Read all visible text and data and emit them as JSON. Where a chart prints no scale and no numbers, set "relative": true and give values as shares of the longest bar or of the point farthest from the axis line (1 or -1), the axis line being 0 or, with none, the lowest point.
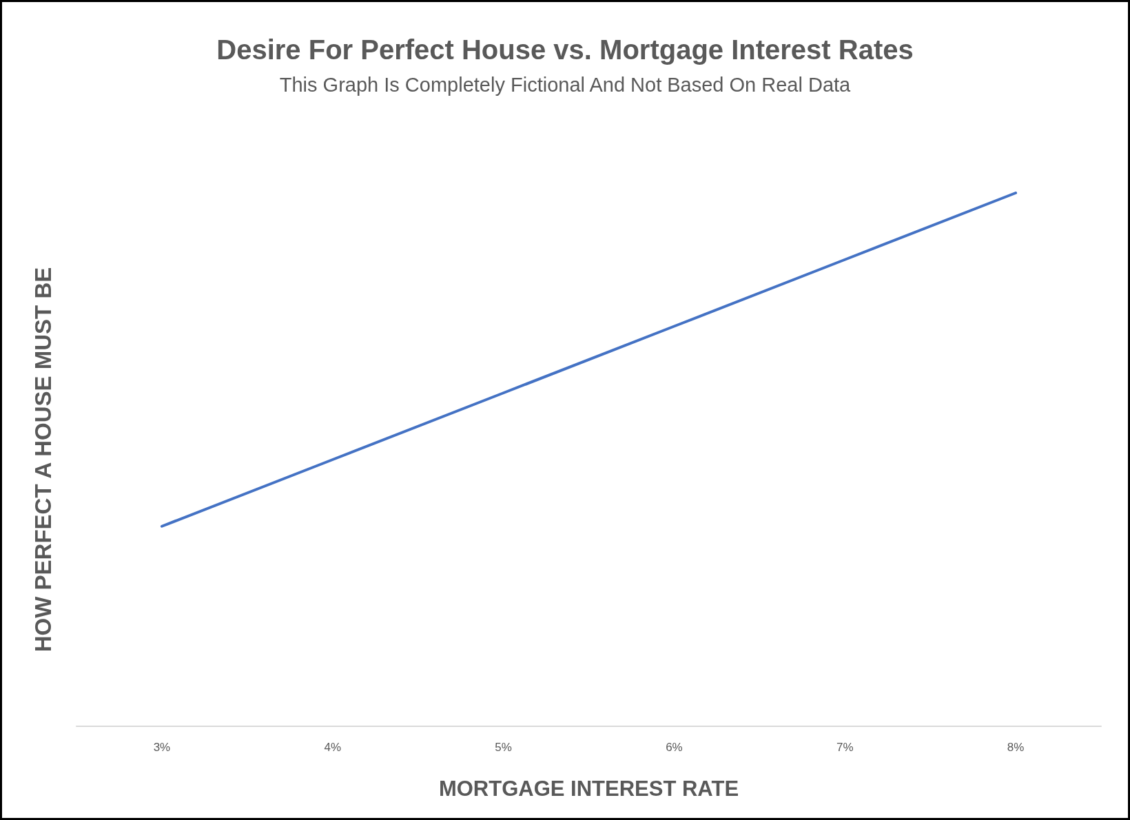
{
  "chart_data": {
    "type": "line",
    "title": "Desire For Perfect House vs. Mortgage Interest Rates",
    "subtitle": "This Graph Is Completely Fictional And Not Based On Real Data",
    "xlabel": "MORTGAGE INTEREST RATE",
    "ylabel": "HOW PERFECT A HOUSE MUST BE",
    "categories": [
      "3%",
      "4%",
      "5%",
      "6%",
      "7%",
      "8%"
    ],
    "series": [
      {
        "color": "#4472c4",
        "values": [
          0.375,
          0.5,
          0.625,
          0.75,
          0.875,
          1
        ]
      }
    ],
    "relative": true,
    "marker": "none",
    "line_style": "solid"
  }
}
